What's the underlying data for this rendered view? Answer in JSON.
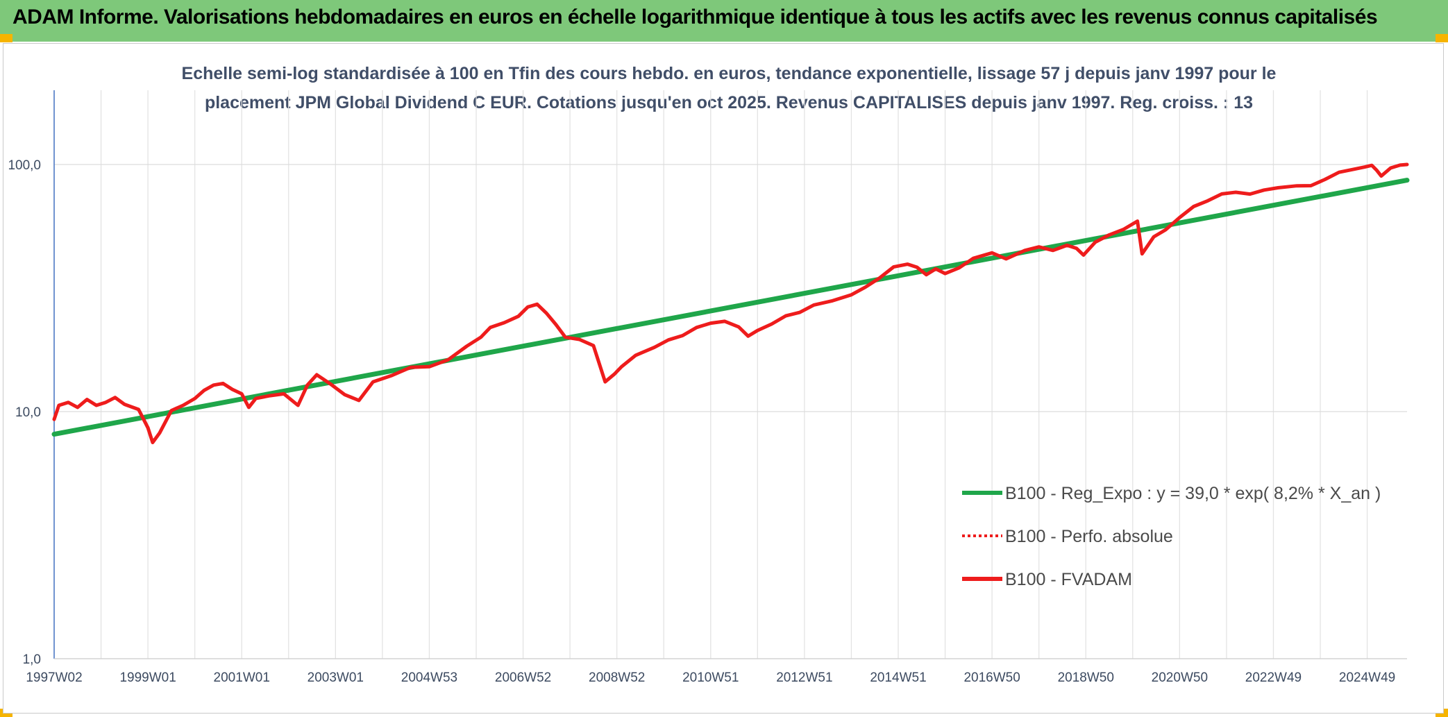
{
  "page": {
    "banner_title": "ADAM Informe. Valorisations hebdomadaires en euros en échelle logarithmique identique à tous les actifs avec les revenus connus capitalisés",
    "banner_color": "#7ec87a",
    "corner_color": "#f6b400"
  },
  "chart_data": {
    "type": "line",
    "title": "Echelle semi-log standardisée à 100 en Tfin des cours hebdo. en euros, tendance exponentielle, lissage 57 j depuis janv 1997 pour le placement JPM Global Dividend C EUR. Cotations jusqu'en oct 2025. Revenus CAPITALISES depuis janv 1997. Reg. croiss. : 13",
    "y_scale": "log",
    "ylim": [
      1,
      180
    ],
    "y_ticks": [
      "1,0",
      "10,0",
      "100,0"
    ],
    "y_tick_values": [
      1,
      10,
      100
    ],
    "x_range": [
      1997.0,
      2025.85
    ],
    "x_tick_labels": [
      "1997W02",
      "1999W01",
      "2001W01",
      "2003W01",
      "2004W53",
      "2006W52",
      "2008W52",
      "2010W51",
      "2012W51",
      "2014W51",
      "2016W50",
      "2018W50",
      "2020W50",
      "2022W49",
      "2024W49"
    ],
    "x_tick_years": [
      1997.0,
      1999.0,
      2001.0,
      2003.0,
      2005.0,
      2007.0,
      2009.0,
      2011.0,
      2013.0,
      2015.0,
      2017.0,
      2019.0,
      2021.0,
      2023.0,
      2025.0
    ],
    "grid": true,
    "legend_position": "bottom-right",
    "series": [
      {
        "name": "B100 - Reg_Expo : y = 39,0 * exp( 8,2% *  X_an )",
        "color": "#1fa64a",
        "style": "solid",
        "x": [
          1997.0,
          2025.85
        ],
        "y": [
          8.1,
          86.4
        ]
      },
      {
        "name": "B100 - Perfo. absolue",
        "color": "#ee1c1c",
        "style": "dotted",
        "x": [],
        "y": []
      },
      {
        "name": "B100 - FVADAM",
        "color": "#ee1c1c",
        "style": "solid",
        "x": [
          1997.0,
          1997.1,
          1997.3,
          1997.5,
          1997.7,
          1997.9,
          1998.1,
          1998.3,
          1998.5,
          1998.8,
          1999.0,
          1999.1,
          1999.25,
          1999.5,
          1999.75,
          2000.0,
          2000.2,
          2000.4,
          2000.6,
          2000.8,
          2001.0,
          2001.15,
          2001.3,
          2001.6,
          2001.9,
          2002.2,
          2002.4,
          2002.6,
          2002.9,
          2003.2,
          2003.5,
          2003.8,
          2004.2,
          2004.6,
          2005.0,
          2005.4,
          2005.8,
          2006.1,
          2006.3,
          2006.6,
          2006.9,
          2007.1,
          2007.3,
          2007.5,
          2007.7,
          2007.9,
          2008.2,
          2008.5,
          2008.75,
          2008.95,
          2009.1,
          2009.4,
          2009.8,
          2010.1,
          2010.4,
          2010.7,
          2011.0,
          2011.3,
          2011.6,
          2011.8,
          2012.0,
          2012.3,
          2012.6,
          2012.9,
          2013.2,
          2013.6,
          2014.0,
          2014.3,
          2014.6,
          2014.9,
          2015.2,
          2015.4,
          2015.6,
          2015.8,
          2016.0,
          2016.3,
          2016.6,
          2017.0,
          2017.3,
          2017.7,
          2018.0,
          2018.3,
          2018.6,
          2018.8,
          2018.95,
          2019.2,
          2019.5,
          2019.8,
          2020.0,
          2020.1,
          2020.2,
          2020.45,
          2020.7,
          2021.0,
          2021.3,
          2021.6,
          2021.9,
          2022.2,
          2022.5,
          2022.8,
          2023.1,
          2023.5,
          2023.8,
          2024.1,
          2024.4,
          2024.7,
          2024.95,
          2025.1,
          2025.2,
          2025.3,
          2025.5,
          2025.7,
          2025.85
        ],
        "y": [
          9.3,
          10.6,
          10.9,
          10.4,
          11.2,
          10.6,
          10.9,
          11.4,
          10.7,
          10.2,
          8.6,
          7.5,
          8.2,
          10.1,
          10.6,
          11.3,
          12.2,
          12.8,
          13.0,
          12.3,
          11.8,
          10.4,
          11.3,
          11.6,
          11.8,
          10.6,
          12.8,
          14.1,
          12.9,
          11.7,
          11.1,
          13.2,
          14.0,
          15.1,
          15.2,
          16.2,
          18.4,
          20.0,
          21.9,
          22.9,
          24.3,
          26.5,
          27.2,
          25.0,
          22.5,
          20.0,
          19.6,
          18.5,
          13.2,
          14.2,
          15.2,
          16.9,
          18.2,
          19.5,
          20.3,
          21.9,
          22.8,
          23.2,
          22.0,
          20.2,
          21.3,
          22.6,
          24.4,
          25.2,
          27.0,
          28.1,
          29.7,
          31.9,
          34.7,
          38.5,
          39.5,
          38.4,
          35.8,
          37.8,
          36.2,
          38.2,
          41.7,
          43.9,
          41.5,
          44.9,
          46.4,
          44.9,
          47.1,
          45.8,
          43.0,
          48.5,
          51.9,
          54.6,
          57.5,
          59.0,
          43.5,
          51.0,
          54.4,
          61.0,
          67.6,
          71.3,
          76.0,
          77.2,
          75.9,
          78.8,
          80.5,
          82.0,
          82.1,
          87.0,
          93.0,
          95.5,
          97.7,
          99.2,
          94.9,
          89.8,
          96.8,
          99.4,
          100.0
        ]
      }
    ]
  }
}
